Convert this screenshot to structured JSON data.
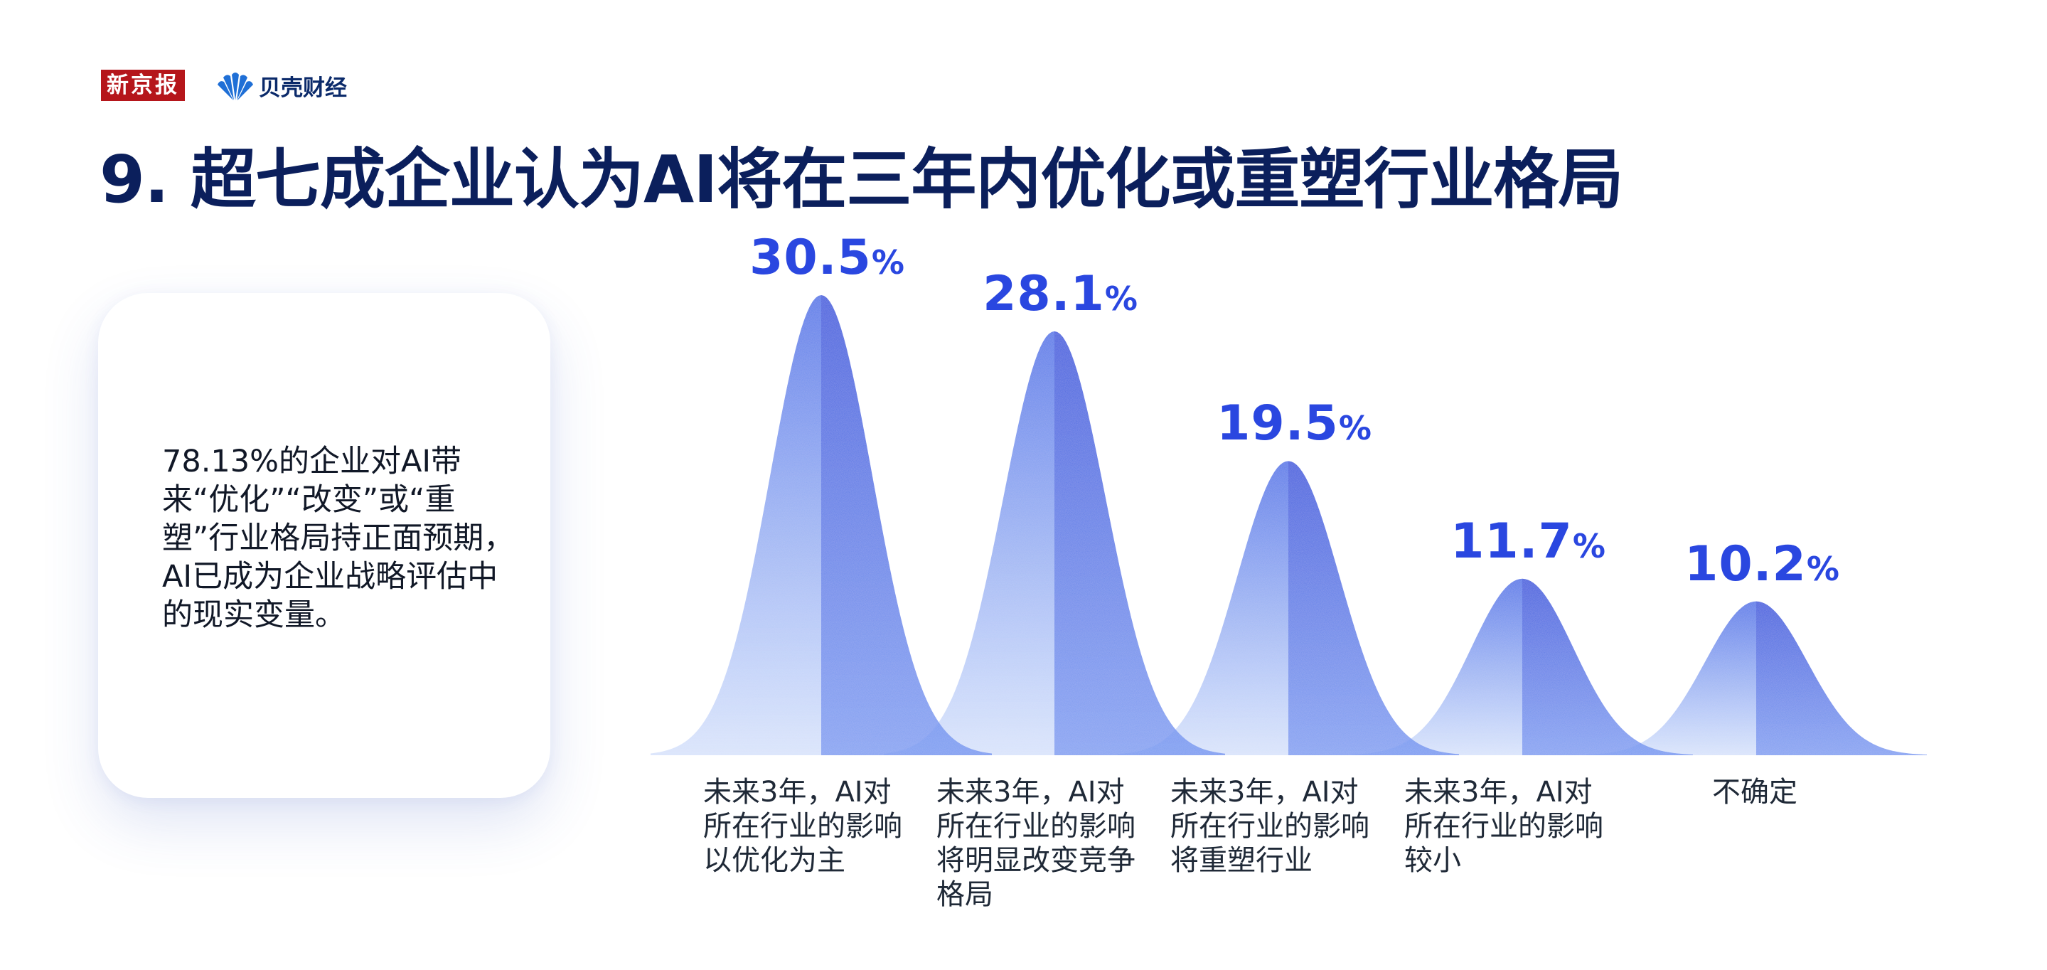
{
  "header": {
    "brand_primary": "新京报",
    "brand_secondary": "贝壳财经",
    "title": "9. 超七成企业认为AI将在三年内优化或重塑行业格局"
  },
  "note": {
    "text": "78.13%的企业对AI带来“优化”“改变”或“重塑”行业格局持正面预期，AI已成为企业战略评估中的现实变量。"
  },
  "colors": {
    "brand_red": "#b5161b",
    "title_navy": "#0b1f5c",
    "value_blue": "#2a47e0",
    "peak_dark": "#1c4fe0",
    "peak_light": "#8fb2f5"
  },
  "chart_data": {
    "type": "area",
    "shape": "bell-curve peaks",
    "categories": [
      "未来3年，AI对\n所在行业的影响\n以优化为主",
      "未来3年，AI对\n所在行业的影响\n将明显改变竞争\n格局",
      "未来3年，AI对\n所在行业的影响\n将重塑行业",
      "未来3年，AI对\n所在行业的影响\n较小",
      "不确定"
    ],
    "values": [
      30.5,
      28.1,
      19.5,
      11.7,
      10.2
    ],
    "value_labels": [
      "30.5",
      "28.1",
      "19.5",
      "11.7",
      "10.2"
    ],
    "unit": "%",
    "ylim": [
      0,
      30.5
    ]
  }
}
